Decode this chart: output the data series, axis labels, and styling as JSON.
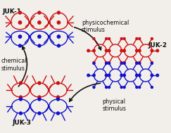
{
  "bg_color": "#f2efea",
  "red": "#cc1111",
  "blue": "#1111cc",
  "black": "#111111",
  "labels": {
    "JUK1": "JUK-1",
    "JUK2": "JUK-2",
    "JUK3": "JUK-3",
    "arrow1": "physicochemical\nstimulus",
    "arrow2": "physical\nstimulus",
    "arrow3": "chemical\nstimulus"
  },
  "label_fontsize": 6.5,
  "arrow_fontsize": 5.8
}
